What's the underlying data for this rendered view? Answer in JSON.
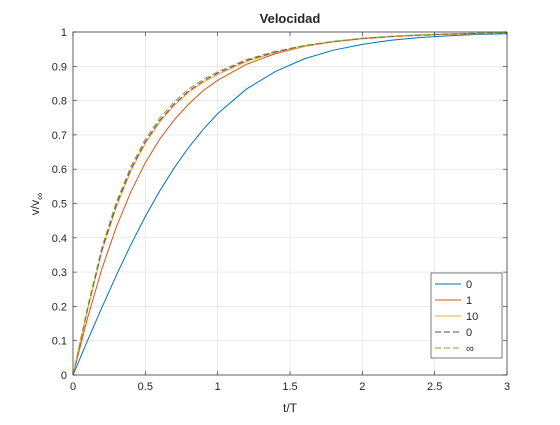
{
  "chart_data": {
    "type": "line",
    "title": "Velocidad",
    "xlabel": "t/T",
    "ylabel": "v/v",
    "ylabel_subscript": "∞",
    "xlim": [
      0,
      3
    ],
    "ylim": [
      0,
      1
    ],
    "grid": true,
    "legend_position": "bottom-right",
    "x_ticks": [
      0,
      0.5,
      1,
      1.5,
      2,
      2.5,
      3
    ],
    "x_tick_labels": [
      "0",
      "0.5",
      "1",
      "1.5",
      "2",
      "2.5",
      "3"
    ],
    "y_ticks": [
      0,
      0.1,
      0.2,
      0.3,
      0.4,
      0.5,
      0.6,
      0.7,
      0.8,
      0.9,
      1
    ],
    "y_tick_labels": [
      "0",
      "0.1",
      "0.2",
      "0.3",
      "0.4",
      "0.5",
      "0.6",
      "0.7",
      "0.8",
      "0.9",
      "1"
    ],
    "x": [
      0,
      0.1,
      0.2,
      0.3,
      0.4,
      0.5,
      0.6,
      0.7,
      0.8,
      0.9,
      1.0,
      1.2,
      1.4,
      1.6,
      1.8,
      2.0,
      2.2,
      2.4,
      2.6,
      2.8,
      3.0
    ],
    "series": [
      {
        "name": "0",
        "color": "#0072BD",
        "dash": "solid",
        "values": [
          0,
          0.1,
          0.197,
          0.291,
          0.38,
          0.462,
          0.537,
          0.604,
          0.664,
          0.716,
          0.762,
          0.834,
          0.885,
          0.922,
          0.947,
          0.964,
          0.976,
          0.984,
          0.989,
          0.993,
          0.995
        ]
      },
      {
        "name": "1",
        "color": "#D95319",
        "dash": "solid",
        "values": [
          0,
          0.165,
          0.31,
          0.432,
          0.534,
          0.619,
          0.688,
          0.744,
          0.79,
          0.829,
          0.859,
          0.906,
          0.937,
          0.958,
          0.972,
          0.981,
          0.987,
          0.991,
          0.994,
          0.996,
          0.997
        ]
      },
      {
        "name": "10",
        "color": "#EDB120",
        "dash": "solid",
        "values": [
          0,
          0.19,
          0.36,
          0.49,
          0.595,
          0.675,
          0.737,
          0.786,
          0.824,
          0.853,
          0.876,
          0.914,
          0.94,
          0.958,
          0.971,
          0.98,
          0.986,
          0.99,
          0.993,
          0.995,
          0.997
        ]
      },
      {
        "name": "0",
        "color": "#7E2F8E",
        "dash": "dashed",
        "values": [
          0,
          0.19,
          0.365,
          0.497,
          0.6,
          0.68,
          0.742,
          0.79,
          0.828,
          0.857,
          0.88,
          0.917,
          0.942,
          0.96,
          0.972,
          0.981,
          0.987,
          0.991,
          0.994,
          0.996,
          0.997
        ]
      },
      {
        "name": "∞",
        "color": "#77AC30",
        "dash": "dashed",
        "values": [
          0,
          0.197,
          0.373,
          0.505,
          0.608,
          0.688,
          0.749,
          0.797,
          0.834,
          0.862,
          0.884,
          0.92,
          0.944,
          0.961,
          0.973,
          0.982,
          0.988,
          0.992,
          0.995,
          0.997,
          0.998
        ]
      }
    ]
  }
}
